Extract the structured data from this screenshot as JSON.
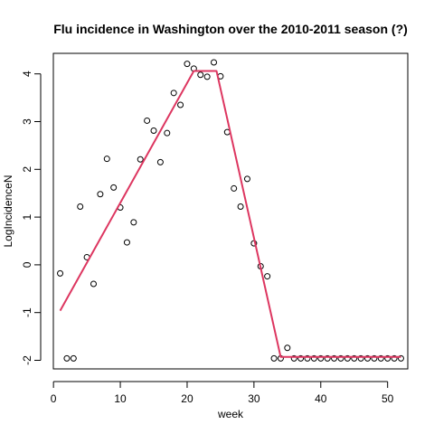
{
  "chart_data": {
    "type": "scatter",
    "title": "Flu incidence in Washington over the 2010-2011 season (?)",
    "xlabel": "week",
    "ylabel": "LogIncidenceN",
    "xlim": [
      -0.02,
      53.02
    ],
    "ylim": [
      -2.18,
      4.43
    ],
    "xticks": [
      0,
      10,
      20,
      30,
      40,
      50
    ],
    "yticks": [
      -2,
      -1,
      0,
      1,
      2,
      3,
      4
    ],
    "xtick_labels": [
      "0",
      "10",
      "20",
      "30",
      "40",
      "50"
    ],
    "ytick_labels": [
      "-2",
      "-1",
      "0",
      "1",
      "2",
      "3",
      "4"
    ],
    "grid": false,
    "points": {
      "x": [
        1,
        2,
        3,
        4,
        5,
        6,
        7,
        8,
        9,
        10,
        11,
        12,
        13,
        14,
        15,
        16,
        17,
        18,
        19,
        20,
        21,
        22,
        23,
        24,
        25,
        26,
        27,
        28,
        29,
        30,
        31,
        32,
        33,
        34,
        35,
        36,
        37,
        38,
        39,
        40,
        41,
        42,
        43,
        44,
        45,
        46,
        47,
        48,
        49,
        50,
        51,
        52
      ],
      "y": [
        -0.18,
        -1.96,
        -1.96,
        1.22,
        0.16,
        -0.4,
        1.48,
        2.22,
        1.62,
        1.2,
        0.47,
        0.89,
        2.21,
        3.02,
        2.81,
        2.15,
        2.76,
        3.6,
        3.35,
        4.21,
        4.11,
        3.98,
        3.94,
        4.24,
        3.95,
        2.78,
        1.6,
        1.22,
        1.8,
        0.45,
        -0.03,
        -0.24,
        -1.96,
        -1.96,
        -1.74,
        -1.96,
        -1.96,
        -1.96,
        -1.96,
        -1.96,
        -1.96,
        -1.96,
        -1.96,
        -1.96,
        -1.96,
        -1.96,
        -1.96,
        -1.96,
        -1.96,
        -1.96,
        -1.96,
        -1.96
      ],
      "marker": "open-circle",
      "color": "#000000"
    },
    "fit_line": {
      "x": [
        1,
        21,
        24.4,
        34,
        52
      ],
      "y": [
        -0.96,
        4.06,
        4.06,
        -1.93,
        -1.93
      ],
      "color": "#dd3660"
    }
  }
}
